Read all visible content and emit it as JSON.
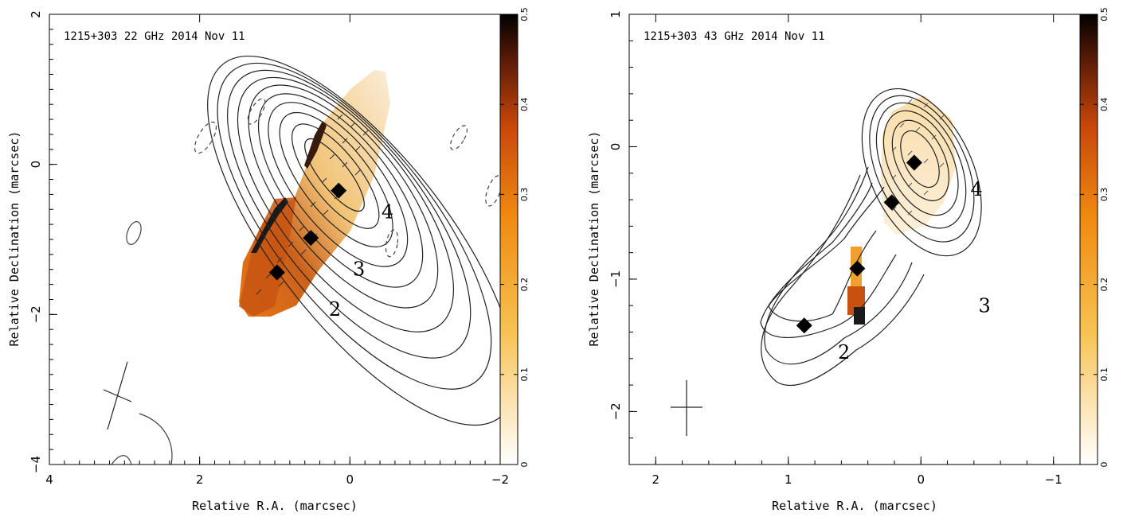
{
  "chart_data": [
    {
      "type": "contour",
      "title": "1215+303 22 GHz 2014 Nov 11",
      "xlabel": "Relative R.A. (marcsec)",
      "ylabel": "Relative Declination (marcsec)",
      "xlim": [
        4,
        -2
      ],
      "ylim": [
        -4,
        2
      ],
      "x_ticks": [
        "4",
        "2",
        "0",
        "−2"
      ],
      "y_ticks": [
        "2",
        "0",
        "−2",
        "−4"
      ],
      "colorbar": {
        "range": [
          0,
          0.5
        ],
        "ticks": [
          "0",
          "0.1",
          "0.2",
          "0.3",
          "0.4",
          "0.5"
        ]
      },
      "components": [
        {
          "label": "4",
          "x": 0.15,
          "y": -0.35
        },
        {
          "label": "3",
          "x": 0.52,
          "y": -0.98
        },
        {
          "label": "2",
          "x": 0.97,
          "y": -1.44
        }
      ],
      "contour_labels": [
        {
          "text": "4",
          "x": -0.5,
          "y": -0.72
        },
        {
          "text": "3",
          "x": -0.12,
          "y": -1.48
        },
        {
          "text": "2",
          "x": 0.2,
          "y": -2.02
        }
      ]
    },
    {
      "type": "contour",
      "title": "1215+303 43 GHz 2014 Nov 11",
      "xlabel": "Relative R.A. (marcsec)",
      "ylabel": "Relative Declination (marcsec)",
      "xlim": [
        2.2,
        -1.2
      ],
      "ylim": [
        -2.4,
        1
      ],
      "x_ticks": [
        "2",
        "1",
        "0",
        "−1"
      ],
      "y_ticks": [
        "1",
        "0",
        "−1",
        "−2"
      ],
      "colorbar": {
        "range": [
          0,
          0.5
        ],
        "ticks": [
          "0",
          "0.1",
          "0.2",
          "0.3",
          "0.4",
          "0.5"
        ]
      },
      "components": [
        {
          "label": "4",
          "x": 0.05,
          "y": -0.12
        },
        {
          "label": "3",
          "x": 0.22,
          "y": -0.42
        },
        {
          "label": "3",
          "x": 0.48,
          "y": -0.92
        },
        {
          "label": "2",
          "x": 0.88,
          "y": -1.35
        }
      ],
      "contour_labels": [
        {
          "text": "4",
          "x": -0.42,
          "y": -0.37
        },
        {
          "text": "3",
          "x": -0.48,
          "y": -1.25
        },
        {
          "text": "2",
          "x": 0.58,
          "y": -1.6
        }
      ]
    }
  ]
}
